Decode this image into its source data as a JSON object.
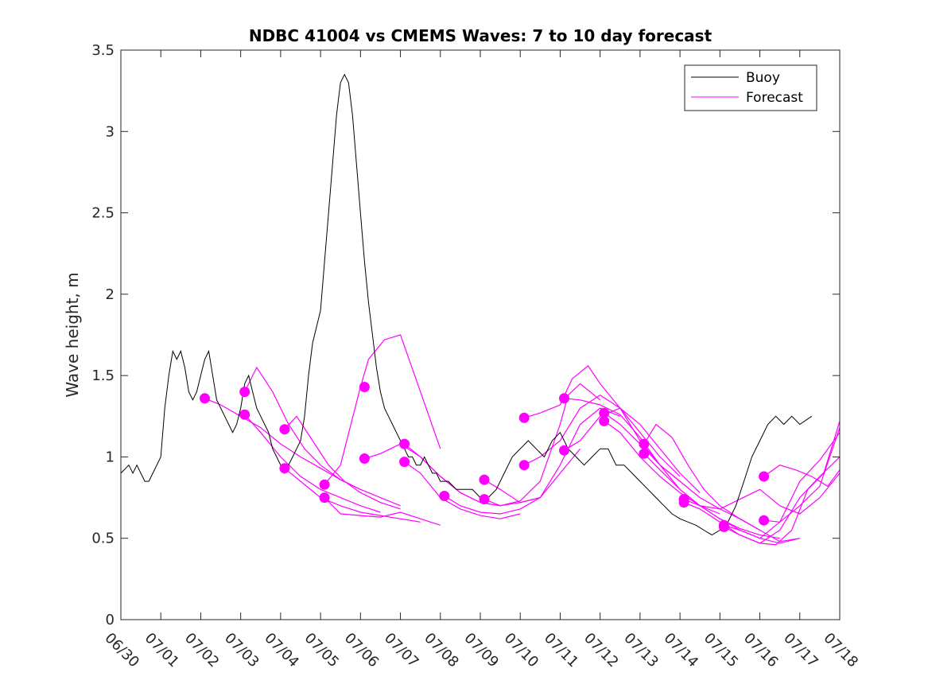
{
  "chart_data": {
    "type": "line",
    "title": "NDBC 41004 vs CMEMS Waves: 7 to 10 day forecast",
    "xlabel": "",
    "ylabel": "Wave height, m",
    "xlim": [
      0,
      18
    ],
    "ylim": [
      0,
      3.5
    ],
    "x_tick_values": [
      0,
      1,
      2,
      3,
      4,
      5,
      6,
      7,
      8,
      9,
      10,
      11,
      12,
      13,
      14,
      15,
      16,
      17,
      18
    ],
    "x_tick_labels": [
      "06/30",
      "07/01",
      "07/02",
      "07/03",
      "07/04",
      "07/05",
      "07/06",
      "07/07",
      "07/08",
      "07/09",
      "07/10",
      "07/11",
      "07/12",
      "07/13",
      "07/14",
      "07/15",
      "07/16",
      "07/17",
      "07/18"
    ],
    "y_tick_values": [
      0,
      0.5,
      1,
      1.5,
      2,
      2.5,
      3,
      3.5
    ],
    "y_tick_labels": [
      "0",
      "0.5",
      "1",
      "1.5",
      "2",
      "2.5",
      "3",
      "3.5"
    ],
    "legend": {
      "position": "top-right",
      "entries": [
        "Buoy",
        "Forecast"
      ]
    },
    "colors": {
      "buoy": "#000000",
      "forecast": "#ff00ff",
      "axes": "#262626"
    },
    "buoy": {
      "name": "Buoy",
      "x": [
        0,
        0.2,
        0.3,
        0.4,
        0.5,
        0.6,
        0.7,
        0.8,
        0.9,
        1.0,
        1.1,
        1.2,
        1.3,
        1.4,
        1.5,
        1.6,
        1.7,
        1.8,
        1.9,
        2.0,
        2.1,
        2.2,
        2.3,
        2.4,
        2.5,
        2.6,
        2.7,
        2.8,
        2.9,
        3.0,
        3.1,
        3.2,
        3.3,
        3.4,
        3.5,
        3.6,
        3.7,
        3.8,
        3.9,
        4.0,
        4.1,
        4.2,
        4.3,
        4.4,
        4.5,
        4.6,
        4.7,
        4.8,
        4.9,
        5.0,
        5.1,
        5.2,
        5.3,
        5.4,
        5.5,
        5.6,
        5.7,
        5.8,
        5.9,
        6.0,
        6.1,
        6.2,
        6.3,
        6.4,
        6.5,
        6.6,
        6.7,
        6.8,
        6.9,
        7.0,
        7.1,
        7.2,
        7.3,
        7.4,
        7.5,
        7.6,
        7.7,
        7.8,
        7.9,
        8.0,
        8.2,
        8.4,
        8.6,
        8.8,
        9.0,
        9.2,
        9.4,
        9.6,
        9.8,
        10.0,
        10.2,
        10.4,
        10.6,
        10.8,
        11.0,
        11.2,
        11.4,
        11.6,
        11.8,
        12.0,
        12.2,
        12.4,
        12.6,
        12.8,
        13.0,
        13.2,
        13.4,
        13.6,
        13.8,
        14.0,
        14.2,
        14.4,
        14.6,
        14.8,
        15.0,
        15.2,
        15.4,
        15.6,
        15.8,
        16.0,
        16.2,
        16.4,
        16.6,
        16.8,
        17.0,
        17.3
      ],
      "y": [
        0.9,
        0.95,
        0.9,
        0.95,
        0.9,
        0.85,
        0.85,
        0.9,
        0.95,
        1.0,
        1.3,
        1.5,
        1.65,
        1.6,
        1.65,
        1.55,
        1.4,
        1.35,
        1.4,
        1.5,
        1.6,
        1.65,
        1.5,
        1.35,
        1.3,
        1.25,
        1.2,
        1.15,
        1.2,
        1.3,
        1.45,
        1.5,
        1.4,
        1.3,
        1.25,
        1.2,
        1.15,
        1.05,
        1.0,
        0.95,
        0.9,
        0.95,
        1.0,
        1.05,
        1.1,
        1.25,
        1.5,
        1.7,
        1.8,
        1.9,
        2.2,
        2.5,
        2.8,
        3.1,
        3.3,
        3.35,
        3.3,
        3.1,
        2.8,
        2.5,
        2.2,
        1.95,
        1.75,
        1.55,
        1.4,
        1.3,
        1.25,
        1.2,
        1.15,
        1.1,
        1.05,
        1.0,
        1.0,
        0.95,
        0.95,
        1.0,
        0.95,
        0.9,
        0.9,
        0.85,
        0.85,
        0.8,
        0.8,
        0.8,
        0.75,
        0.75,
        0.8,
        0.9,
        1.0,
        1.05,
        1.1,
        1.05,
        1.0,
        1.1,
        1.15,
        1.05,
        1.0,
        0.95,
        1.0,
        1.05,
        1.05,
        0.95,
        0.95,
        0.9,
        0.85,
        0.8,
        0.75,
        0.7,
        0.65,
        0.62,
        0.6,
        0.58,
        0.55,
        0.52,
        0.55,
        0.6,
        0.7,
        0.85,
        1.0,
        1.1,
        1.2,
        1.25,
        1.2,
        1.25,
        1.2,
        1.25
      ]
    },
    "forecast_runs": [
      {
        "x": [
          2.1,
          2.5,
          3.0,
          3.5,
          4.0,
          4.5,
          5.0,
          5.5,
          6.0
        ],
        "y": [
          1.36,
          1.32,
          1.25,
          1.18,
          1.08,
          1.0,
          0.93,
          0.86,
          0.8
        ]
      },
      {
        "x": [
          3.1,
          3.4,
          3.8,
          4.2,
          4.6,
          5.0,
          5.5,
          6.0,
          6.5,
          7.0
        ],
        "y": [
          1.4,
          1.55,
          1.4,
          1.2,
          1.05,
          0.95,
          0.86,
          0.8,
          0.75,
          0.7
        ]
      },
      {
        "x": [
          3.1,
          3.5,
          4.0,
          4.5,
          5.0,
          5.5,
          6.0,
          6.5
        ],
        "y": [
          1.26,
          1.15,
          1.0,
          0.88,
          0.8,
          0.75,
          0.7,
          0.66
        ]
      },
      {
        "x": [
          4.1,
          4.4,
          4.8,
          5.2,
          5.6,
          6.0,
          6.5,
          7.0
        ],
        "y": [
          1.17,
          1.25,
          1.1,
          0.95,
          0.85,
          0.78,
          0.72,
          0.68
        ]
      },
      {
        "x": [
          4.1,
          4.5,
          5.0,
          5.5,
          6.0,
          6.5,
          7.0,
          7.5
        ],
        "y": [
          0.93,
          0.85,
          0.75,
          0.7,
          0.66,
          0.64,
          0.62,
          0.6
        ]
      },
      {
        "x": [
          5.1,
          5.5,
          6.0,
          6.2,
          6.6,
          7.0,
          7.5,
          8.0
        ],
        "y": [
          0.83,
          0.95,
          1.43,
          1.6,
          1.72,
          1.75,
          1.4,
          1.05
        ]
      },
      {
        "x": [
          5.1,
          5.5,
          6.0,
          6.5,
          7.0,
          7.5,
          8.0
        ],
        "y": [
          0.75,
          0.65,
          0.64,
          0.63,
          0.66,
          0.62,
          0.58
        ]
      },
      {
        "x": [
          6.1,
          6.5,
          7.0,
          7.5,
          8.0,
          8.5,
          9.0,
          9.5
        ],
        "y": [
          0.99,
          1.02,
          1.08,
          1.0,
          0.88,
          0.78,
          0.72,
          0.7
        ]
      },
      {
        "x": [
          7.1,
          7.5,
          8.0,
          8.5,
          9.0,
          9.5,
          10.0,
          10.5
        ],
        "y": [
          1.08,
          1.0,
          0.88,
          0.78,
          0.72,
          0.7,
          0.72,
          0.75
        ]
      },
      {
        "x": [
          7.1,
          7.5,
          8.0,
          8.5,
          9.0,
          9.5,
          10.0
        ],
        "y": [
          0.97,
          0.9,
          0.75,
          0.68,
          0.64,
          0.62,
          0.65
        ]
      },
      {
        "x": [
          8.1,
          8.5,
          9.0,
          9.5,
          10.0,
          10.5,
          11.0,
          11.5
        ],
        "y": [
          0.76,
          0.7,
          0.66,
          0.65,
          0.68,
          0.75,
          0.9,
          1.05
        ]
      },
      {
        "x": [
          9.1,
          9.5,
          10.0,
          10.5,
          11.0,
          11.5,
          12.0,
          12.5
        ],
        "y": [
          0.86,
          0.8,
          0.72,
          0.75,
          0.95,
          1.2,
          1.3,
          1.25
        ]
      },
      {
        "x": [
          9.1,
          9.5,
          10.0,
          10.5,
          11.0,
          11.2,
          11.5,
          12.0
        ],
        "y": [
          0.74,
          0.7,
          0.73,
          0.85,
          1.2,
          1.38,
          1.45,
          1.35
        ]
      },
      {
        "x": [
          10.1,
          10.5,
          11.0,
          11.3,
          11.7,
          12.0,
          12.5,
          13.0,
          13.5,
          14.0
        ],
        "y": [
          1.24,
          1.27,
          1.32,
          1.48,
          1.56,
          1.45,
          1.3,
          1.1,
          0.95,
          0.85
        ]
      },
      {
        "x": [
          10.1,
          10.5,
          11.0,
          11.5,
          12.0,
          12.5,
          13.0,
          13.5,
          14.0
        ],
        "y": [
          0.95,
          1.0,
          1.1,
          1.3,
          1.38,
          1.3,
          1.15,
          1.0,
          0.88
        ]
      },
      {
        "x": [
          11.1,
          11.5,
          12.0,
          12.5,
          13.0,
          13.5,
          14.0,
          14.5,
          15.0
        ],
        "y": [
          1.36,
          1.35,
          1.32,
          1.26,
          1.12,
          0.95,
          0.8,
          0.7,
          0.65
        ]
      },
      {
        "x": [
          11.1,
          11.5,
          12.0,
          12.5,
          13.0,
          13.5,
          14.0,
          14.5
        ],
        "y": [
          1.04,
          1.1,
          1.25,
          1.3,
          1.2,
          1.05,
          0.9,
          0.78
        ]
      },
      {
        "x": [
          12.1,
          12.5,
          13.0,
          13.5,
          14.0,
          14.5,
          15.0,
          15.5,
          16.0
        ],
        "y": [
          1.27,
          1.2,
          1.08,
          0.95,
          0.85,
          0.75,
          0.68,
          0.62,
          0.55
        ]
      },
      {
        "x": [
          12.1,
          12.5,
          13.0,
          13.5,
          14.0,
          14.5,
          15.0,
          15.5,
          16.0,
          16.5
        ],
        "y": [
          1.22,
          1.15,
          1.0,
          0.88,
          0.78,
          0.7,
          0.62,
          0.56,
          0.52,
          0.5
        ]
      },
      {
        "x": [
          13.1,
          13.4,
          13.8,
          14.2,
          14.6,
          15.0,
          15.5,
          16.0,
          16.5,
          17.0
        ],
        "y": [
          1.08,
          1.2,
          1.12,
          0.95,
          0.8,
          0.7,
          0.62,
          0.55,
          0.48,
          0.5
        ]
      },
      {
        "x": [
          13.1,
          13.5,
          14.0,
          14.5,
          15.0,
          15.5,
          16.0,
          16.5,
          17.0
        ],
        "y": [
          1.02,
          0.92,
          0.8,
          0.7,
          0.62,
          0.55,
          0.5,
          0.47,
          0.5
        ]
      },
      {
        "x": [
          14.1,
          14.5,
          15.0,
          15.5,
          16.0,
          16.5,
          17.0,
          17.5,
          18.0
        ],
        "y": [
          0.74,
          0.7,
          0.68,
          0.74,
          0.8,
          0.7,
          0.65,
          0.75,
          0.9
        ]
      },
      {
        "x": [
          14.1,
          14.5,
          15.0,
          15.5,
          16.0,
          16.5,
          17.0,
          17.5,
          18.0
        ],
        "y": [
          0.72,
          0.68,
          0.6,
          0.52,
          0.47,
          0.55,
          0.75,
          0.88,
          1.0
        ]
      },
      {
        "x": [
          15.1,
          15.5,
          16.0,
          16.5,
          17.0,
          17.5,
          18.0
        ],
        "y": [
          0.58,
          0.55,
          0.5,
          0.6,
          0.85,
          0.98,
          1.15
        ]
      },
      {
        "x": [
          15.1,
          15.5,
          16.0,
          16.4,
          16.8,
          17.2,
          17.6,
          18.0
        ],
        "y": [
          0.57,
          0.52,
          0.47,
          0.46,
          0.55,
          0.8,
          0.9,
          1.22
        ]
      },
      {
        "x": [
          16.1,
          16.5,
          16.9,
          17.3,
          17.7,
          18.0
        ],
        "y": [
          0.88,
          0.95,
          0.92,
          0.88,
          0.82,
          0.92
        ]
      },
      {
        "x": [
          16.1,
          16.5,
          17.0,
          17.5,
          18.0
        ],
        "y": [
          0.61,
          0.6,
          0.7,
          0.82,
          1.18
        ]
      }
    ],
    "forecast_markers": [
      {
        "x": 2.1,
        "y": 1.36
      },
      {
        "x": 3.1,
        "y": 1.4
      },
      {
        "x": 3.1,
        "y": 1.26
      },
      {
        "x": 4.1,
        "y": 1.17
      },
      {
        "x": 4.1,
        "y": 0.93
      },
      {
        "x": 5.1,
        "y": 0.83
      },
      {
        "x": 5.1,
        "y": 0.75
      },
      {
        "x": 6.1,
        "y": 1.43
      },
      {
        "x": 6.1,
        "y": 0.99
      },
      {
        "x": 7.1,
        "y": 1.08
      },
      {
        "x": 7.1,
        "y": 0.97
      },
      {
        "x": 8.1,
        "y": 0.76
      },
      {
        "x": 9.1,
        "y": 0.86
      },
      {
        "x": 9.1,
        "y": 0.74
      },
      {
        "x": 10.1,
        "y": 1.24
      },
      {
        "x": 10.1,
        "y": 0.95
      },
      {
        "x": 11.1,
        "y": 1.36
      },
      {
        "x": 11.1,
        "y": 1.04
      },
      {
        "x": 12.1,
        "y": 1.27
      },
      {
        "x": 12.1,
        "y": 1.22
      },
      {
        "x": 13.1,
        "y": 1.08
      },
      {
        "x": 13.1,
        "y": 1.02
      },
      {
        "x": 14.1,
        "y": 0.74
      },
      {
        "x": 14.1,
        "y": 0.72
      },
      {
        "x": 15.1,
        "y": 0.58
      },
      {
        "x": 15.1,
        "y": 0.57
      },
      {
        "x": 16.1,
        "y": 0.88
      },
      {
        "x": 16.1,
        "y": 0.61
      }
    ]
  }
}
